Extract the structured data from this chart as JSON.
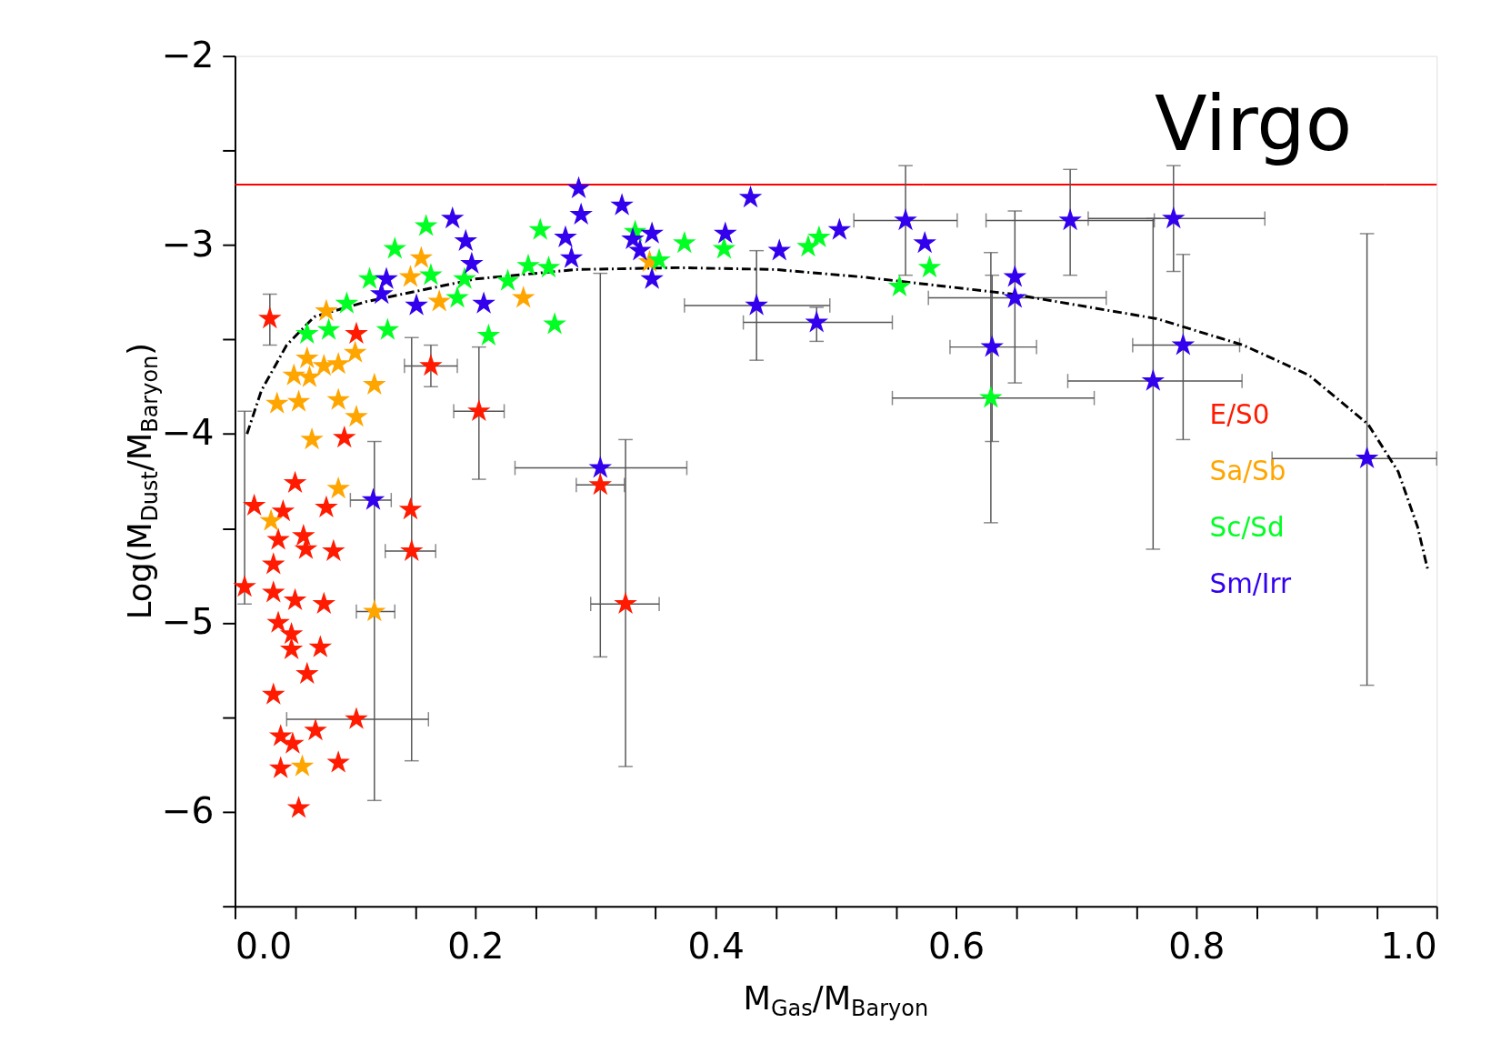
{
  "chart_data": {
    "type": "scatter",
    "xlabel": "M$_{Gas}$/M$_{Baryon}$",
    "ylabel": "Log(M$_{Dust}$/M$_{Baryon}$)",
    "annotations": [
      "Virgo"
    ],
    "xlim": [
      0,
      1
    ],
    "ylim": [
      -6.5,
      -2
    ],
    "xticks": [
      {
        "value": 0,
        "label": "0.0"
      },
      {
        "value": 0.05,
        "label": null
      },
      {
        "value": 0.1,
        "label": null
      },
      {
        "value": 0.15,
        "label": null
      },
      {
        "value": 0.2,
        "label": "0.2"
      },
      {
        "value": 0.25,
        "label": null
      },
      {
        "value": 0.3,
        "label": null
      },
      {
        "value": 0.35,
        "label": null
      },
      {
        "value": 0.4,
        "label": "0.4"
      },
      {
        "value": 0.45,
        "label": null
      },
      {
        "value": 0.5,
        "label": null
      },
      {
        "value": 0.55,
        "label": null
      },
      {
        "value": 0.6,
        "label": "0.6"
      },
      {
        "value": 0.65,
        "label": null
      },
      {
        "value": 0.7,
        "label": null
      },
      {
        "value": 0.75,
        "label": null
      },
      {
        "value": 0.8,
        "label": "0.8"
      },
      {
        "value": 0.85,
        "label": null
      },
      {
        "value": 0.9,
        "label": null
      },
      {
        "value": 0.95,
        "label": null
      },
      {
        "value": 1,
        "label": "1.0"
      }
    ],
    "yticks": [
      {
        "value": -6.5,
        "label": null
      },
      {
        "value": -6,
        "label": "−6"
      },
      {
        "value": -5.5,
        "label": null
      },
      {
        "value": -5,
        "label": "−5"
      },
      {
        "value": -4.5,
        "label": null
      },
      {
        "value": -4,
        "label": "−4"
      },
      {
        "value": -3.5,
        "label": null
      },
      {
        "value": -3,
        "label": "−3"
      },
      {
        "value": -2.5,
        "label": null
      },
      {
        "value": -2,
        "label": "−2"
      }
    ],
    "grid": false,
    "legend": "bottom right",
    "marker": "star",
    "ref_lines": [
      {
        "axis": "y",
        "value": -2.68,
        "color": "#ff0000"
      }
    ],
    "series": [
      {
        "name": "E/S0",
        "color": "#ff1a00",
        "x": [
          0.029,
          0.101,
          0.163,
          0.203,
          0.304,
          0.325,
          0.091,
          0.05,
          0.016,
          0.04,
          0.076,
          0.146,
          0.057,
          0.036,
          0.082,
          0.147,
          0.059,
          0.008,
          0.032,
          0.032,
          0.05,
          0.074,
          0.036,
          0.047,
          0.071,
          0.047,
          0.06,
          0.032,
          0.101,
          0.038,
          0.048,
          0.067,
          0.086,
          0.038,
          0.053
        ],
        "values": [
          -3.39,
          -3.47,
          -3.64,
          -3.88,
          -4.27,
          -4.9,
          -4.02,
          -4.26,
          -4.38,
          -4.41,
          -4.39,
          -4.4,
          -4.54,
          -4.56,
          -4.62,
          -4.62,
          -4.61,
          -4.81,
          -4.69,
          -4.84,
          -4.88,
          -4.9,
          -5.0,
          -5.06,
          -5.13,
          -5.14,
          -5.27,
          -5.38,
          -5.51,
          -5.6,
          -5.64,
          -5.57,
          -5.74,
          -5.77,
          -5.98
        ],
        "errors": [
          [
            -3.53,
            -3.26
          ],
          null,
          [
            -3.75,
            -3.53
          ],
          [
            -4.24,
            -3.54
          ],
          null,
          [
            -5.76,
            -4.03
          ],
          null,
          null,
          null,
          null,
          null,
          null,
          null,
          null,
          null,
          [
            -5.73,
            -3.49
          ],
          null,
          [
            -4.9,
            -3.88
          ],
          null,
          null,
          null,
          null,
          null,
          null,
          null,
          null,
          null,
          null,
          null,
          null,
          null,
          null,
          null,
          null,
          null
        ],
        "xerrors": [
          null,
          null,
          [
            0.141,
            0.185
          ],
          [
            0.182,
            0.224
          ],
          [
            0.284,
            0.324
          ],
          [
            0.296,
            0.353
          ],
          null,
          null,
          null,
          null,
          null,
          null,
          null,
          null,
          null,
          [
            0.125,
            0.167
          ],
          null,
          null,
          null,
          null,
          null,
          null,
          null,
          null,
          null,
          null,
          null,
          null,
          [
            0.043,
            0.161
          ],
          null,
          null,
          null,
          null,
          null,
          null
        ]
      },
      {
        "name": "Sa/Sb",
        "color": "#ffa500",
        "x": [
          0.076,
          0.1,
          0.06,
          0.049,
          0.062,
          0.074,
          0.086,
          0.035,
          0.053,
          0.086,
          0.116,
          0.101,
          0.064,
          0.086,
          0.03,
          0.116,
          0.056,
          0.155,
          0.146,
          0.24,
          0.17,
          0.345
        ],
        "values": [
          -3.35,
          -3.57,
          -3.6,
          -3.69,
          -3.7,
          -3.64,
          -3.63,
          -3.84,
          -3.83,
          -3.82,
          -3.74,
          -3.91,
          -4.03,
          -4.29,
          -4.46,
          -4.94,
          -5.76,
          -3.07,
          -3.17,
          -3.28,
          -3.3,
          -3.09
        ],
        "errors": [
          null,
          null,
          null,
          null,
          null,
          null,
          null,
          null,
          null,
          null,
          null,
          null,
          null,
          null,
          null,
          [
            -5.94,
            -4.04
          ],
          null,
          null,
          null,
          null,
          null,
          null
        ],
        "xerrors": [
          null,
          null,
          null,
          null,
          null,
          null,
          null,
          null,
          null,
          null,
          null,
          null,
          null,
          null,
          null,
          [
            0.101,
            0.133
          ],
          null,
          null,
          null,
          null,
          null,
          null
        ]
      },
      {
        "name": "Sc/Sd",
        "color": "#00ff22",
        "x": [
          0.06,
          0.078,
          0.093,
          0.112,
          0.127,
          0.133,
          0.159,
          0.163,
          0.185,
          0.191,
          0.211,
          0.227,
          0.244,
          0.254,
          0.261,
          0.266,
          0.333,
          0.353,
          0.374,
          0.407,
          0.477,
          0.486,
          0.553,
          0.578,
          0.629
        ],
        "values": [
          -3.47,
          -3.45,
          -3.31,
          -3.18,
          -3.45,
          -3.02,
          -2.9,
          -3.16,
          -3.28,
          -3.18,
          -3.48,
          -3.19,
          -3.11,
          -2.92,
          -3.12,
          -3.42,
          -2.93,
          -3.08,
          -2.99,
          -3.02,
          -3.01,
          -2.96,
          -3.22,
          -3.12,
          -3.81
        ],
        "errors": [
          null,
          null,
          null,
          null,
          null,
          null,
          null,
          null,
          null,
          null,
          null,
          null,
          null,
          null,
          null,
          null,
          null,
          null,
          null,
          null,
          null,
          null,
          null,
          null,
          [
            -4.47,
            -3.04
          ]
        ],
        "xerrors": [
          null,
          null,
          null,
          null,
          null,
          null,
          null,
          null,
          null,
          null,
          null,
          null,
          null,
          null,
          null,
          null,
          null,
          null,
          null,
          null,
          null,
          null,
          null,
          null,
          [
            0.547,
            0.715
          ]
        ]
      },
      {
        "name": "Sm/Irr",
        "color": "#3300ee",
        "x": [
          0.286,
          0.181,
          0.288,
          0.322,
          0.429,
          0.558,
          0.695,
          0.781,
          0.192,
          0.197,
          0.275,
          0.28,
          0.331,
          0.337,
          0.347,
          0.347,
          0.408,
          0.453,
          0.503,
          0.574,
          0.126,
          0.122,
          0.151,
          0.207,
          0.434,
          0.484,
          0.649,
          0.649,
          0.63,
          0.789,
          0.764,
          0.942,
          0.304,
          0.115
        ],
        "values": [
          -2.7,
          -2.86,
          -2.84,
          -2.79,
          -2.75,
          -2.87,
          -2.87,
          -2.86,
          -2.98,
          -3.1,
          -2.96,
          -3.07,
          -2.97,
          -3.03,
          -2.94,
          -3.18,
          -2.94,
          -3.03,
          -2.92,
          -2.99,
          -3.18,
          -3.26,
          -3.32,
          -3.31,
          -3.32,
          -3.41,
          -3.17,
          -3.28,
          -3.54,
          -3.53,
          -3.72,
          -4.13,
          -4.18,
          -4.35
        ],
        "errors": [
          null,
          null,
          null,
          null,
          null,
          [
            -3.16,
            -2.58
          ],
          [
            -3.16,
            -2.6
          ],
          [
            -3.14,
            -2.58
          ],
          null,
          null,
          null,
          null,
          null,
          null,
          null,
          null,
          null,
          null,
          null,
          null,
          null,
          null,
          null,
          null,
          [
            -3.61,
            -3.03
          ],
          [
            -3.51,
            -3.33
          ],
          null,
          [
            -3.73,
            -2.82
          ],
          [
            -4.04,
            -3.16
          ],
          [
            -4.03,
            -3.05
          ],
          [
            -4.61,
            -2.86
          ],
          [
            -5.33,
            -2.94
          ],
          [
            -5.18,
            -3.15
          ],
          null
        ],
        "xerrors": [
          null,
          null,
          null,
          null,
          null,
          [
            0.515,
            0.601
          ],
          0.07,
          [
            0.71,
            0.857
          ],
          null,
          null,
          null,
          null,
          null,
          null,
          null,
          null,
          null,
          null,
          null,
          null,
          null,
          null,
          null,
          null,
          [
            0.374,
            0.495
          ],
          [
            0.423,
            0.547
          ],
          null,
          [
            0.577,
            0.725
          ],
          [
            0.595,
            0.667
          ],
          [
            0.747,
            0.836
          ],
          [
            0.693,
            0.838
          ],
          [
            0.863,
            1.0
          ],
          [
            0.233,
            0.376
          ],
          [
            0.096,
            0.13
          ]
        ]
      },
      {
        "type": "line",
        "color": "#000000",
        "line_style": "dashed",
        "marker": "none",
        "x": [
          0.01,
          0.022,
          0.043,
          0.066,
          0.109,
          0.2,
          0.284,
          0.37,
          0.45,
          0.523,
          0.647,
          0.767,
          0.839,
          0.894,
          0.943,
          0.968,
          0.984,
          0.993
        ],
        "values": [
          -4.0,
          -3.77,
          -3.53,
          -3.38,
          -3.3,
          -3.18,
          -3.13,
          -3.12,
          -3.13,
          -3.17,
          -3.26,
          -3.39,
          -3.53,
          -3.69,
          -3.95,
          -4.2,
          -4.49,
          -4.73
        ]
      }
    ]
  }
}
